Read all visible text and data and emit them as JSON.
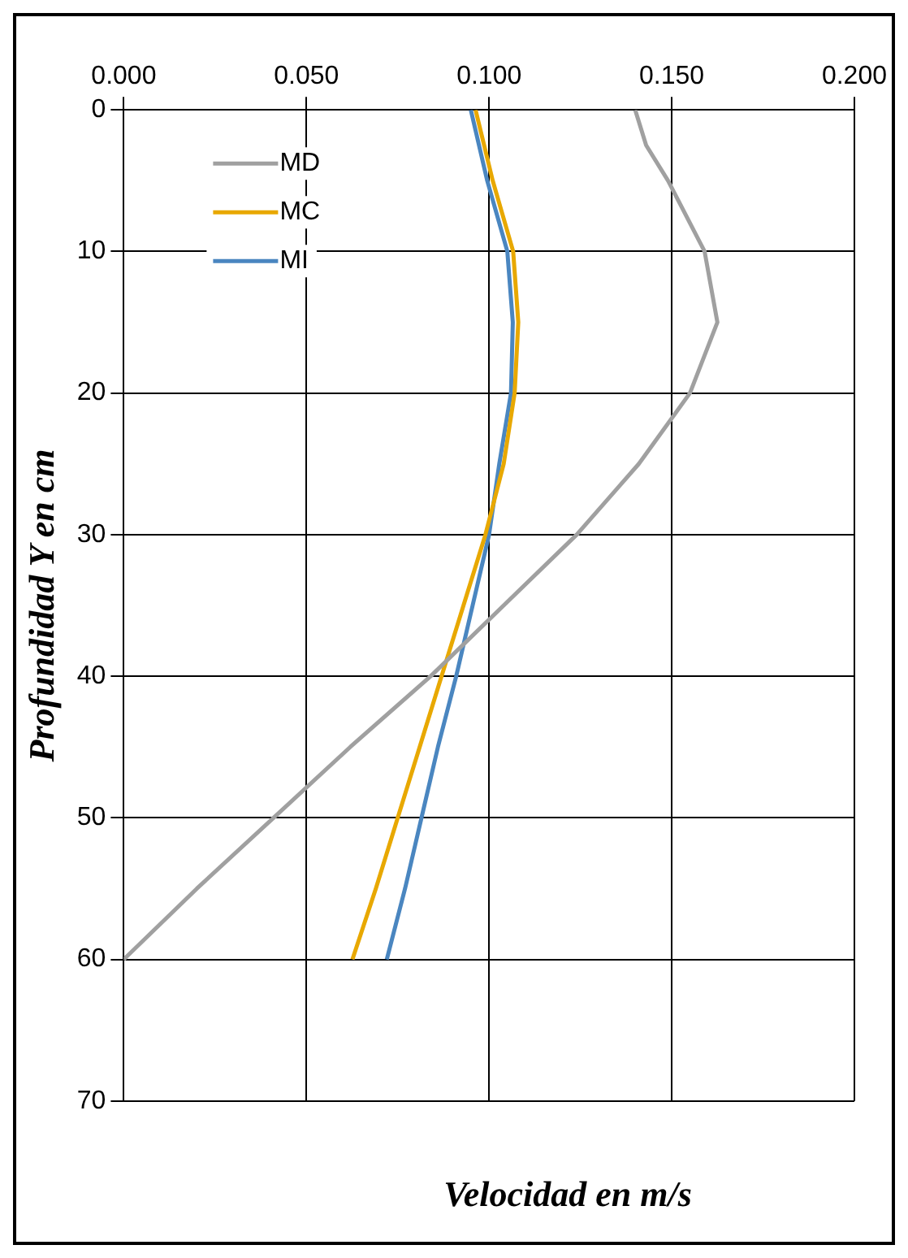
{
  "chart_data": {
    "type": "line",
    "xlabel": "Velocidad en m/s",
    "ylabel": "Profundidad Y en cm",
    "series": [
      {
        "name": "MD",
        "color": "#a0a0a0",
        "x": [
          0.14,
          0.143,
          0.149,
          0.159,
          0.1625,
          0.155,
          0.141,
          0.124,
          0.104,
          0.084,
          0.062,
          0.041,
          0.02,
          0.0
        ],
        "values": [
          0,
          2.5,
          5,
          10,
          15,
          20,
          25,
          30,
          35,
          40,
          45,
          50,
          55,
          60
        ]
      },
      {
        "name": "MC",
        "color": "#e8a800",
        "x": [
          0.0963,
          0.101,
          0.1066,
          0.108,
          0.107,
          0.104,
          0.099,
          0.093,
          0.087,
          0.081,
          0.075,
          0.069,
          0.0626
        ],
        "values": [
          0,
          5,
          10,
          15,
          20,
          25,
          30,
          35,
          40,
          45,
          50,
          55,
          60
        ]
      },
      {
        "name": "MI",
        "color": "#4a86c0",
        "x": [
          0.095,
          0.0995,
          0.105,
          0.1065,
          0.106,
          0.1028,
          0.1,
          0.0955,
          0.091,
          0.086,
          0.0815,
          0.077,
          0.072
        ],
        "values": [
          0,
          5,
          10,
          15,
          20,
          25,
          30,
          35,
          40,
          45,
          50,
          55,
          60
        ]
      }
    ],
    "xlim": [
      0,
      0.2
    ],
    "xticks": [
      {
        "value": 0,
        "label": "0.000"
      },
      {
        "value": 0.05,
        "label": "0.050"
      },
      {
        "value": 0.1,
        "label": "0.100"
      },
      {
        "value": 0.15,
        "label": "0.150"
      },
      {
        "value": 0.2,
        "label": "0.200"
      }
    ],
    "ylim": [
      70,
      0
    ],
    "yticks": [
      0,
      10,
      20,
      30,
      40,
      50,
      60,
      70
    ],
    "grid": true,
    "legend": "top left",
    "marker": "none",
    "line_style": "solid"
  }
}
